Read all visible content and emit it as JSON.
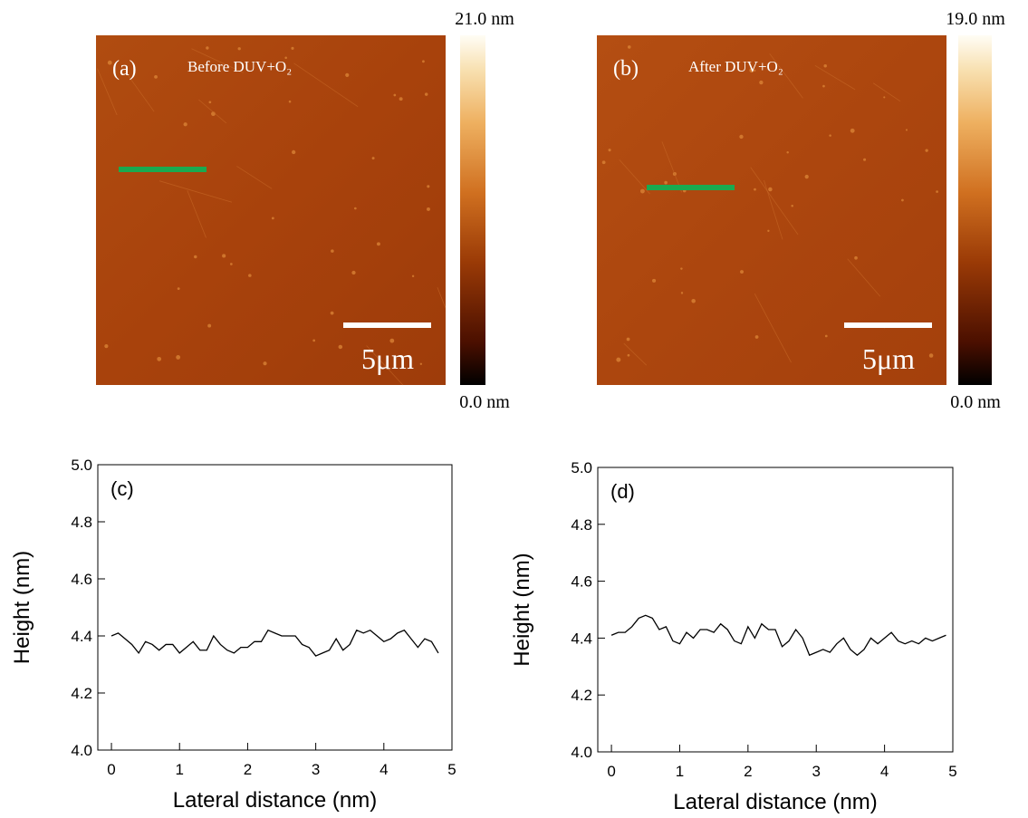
{
  "afm_images": [
    {
      "label": "(a)",
      "caption": "Before DUV+O₂",
      "scale_bar": "5μm",
      "colorbar_max": "21.0 nm",
      "colorbar_min": "0.0 nm"
    },
    {
      "label": "(b)",
      "caption": "After DUV+O₂",
      "scale_bar": "5μm",
      "colorbar_max": "19.0 nm",
      "colorbar_min": "0.0 nm"
    }
  ],
  "chart_data": [
    {
      "type": "line",
      "label": "(c)",
      "xlabel": "Lateral distance (nm)",
      "ylabel": "Height (nm)",
      "color": "#000000",
      "x": [
        0.0,
        0.1,
        0.2,
        0.3,
        0.4,
        0.5,
        0.6,
        0.7,
        0.8,
        0.9,
        1.0,
        1.1,
        1.2,
        1.3,
        1.4,
        1.5,
        1.6,
        1.7,
        1.8,
        1.9,
        2.0,
        2.1,
        2.2,
        2.3,
        2.4,
        2.5,
        2.6,
        2.7,
        2.8,
        2.9,
        3.0,
        3.1,
        3.2,
        3.3,
        3.4,
        3.5,
        3.6,
        3.7,
        3.8,
        3.9,
        4.0,
        4.1,
        4.2,
        4.3,
        4.4,
        4.5,
        4.6,
        4.7,
        4.8
      ],
      "values": [
        4.4,
        4.41,
        4.39,
        4.37,
        4.34,
        4.38,
        4.37,
        4.35,
        4.37,
        4.37,
        4.34,
        4.36,
        4.38,
        4.35,
        4.35,
        4.4,
        4.37,
        4.35,
        4.34,
        4.36,
        4.36,
        4.38,
        4.38,
        4.42,
        4.41,
        4.4,
        4.4,
        4.4,
        4.37,
        4.36,
        4.33,
        4.34,
        4.35,
        4.39,
        4.35,
        4.37,
        4.42,
        4.41,
        4.42,
        4.4,
        4.38,
        4.39,
        4.41,
        4.42,
        4.39,
        4.36,
        4.39,
        4.38,
        4.34
      ],
      "xlim": [
        -0.2,
        5
      ],
      "xticks": [
        0,
        1,
        2,
        3,
        4,
        5
      ],
      "ylim": [
        4.0,
        5.0
      ],
      "yticks": [
        {
          "value": 4.0,
          "label": "4.0"
        },
        4.2,
        4.4,
        4.6,
        4.8,
        {
          "value": 5.0,
          "label": "5.0"
        }
      ]
    },
    {
      "type": "line",
      "label": "(d)",
      "xlabel": "Lateral distance (nm)",
      "ylabel": "Height (nm)",
      "color": "#000000",
      "x": [
        0.0,
        0.1,
        0.2,
        0.3,
        0.4,
        0.5,
        0.6,
        0.7,
        0.8,
        0.9,
        1.0,
        1.1,
        1.2,
        1.3,
        1.4,
        1.5,
        1.6,
        1.7,
        1.8,
        1.9,
        2.0,
        2.1,
        2.2,
        2.3,
        2.4,
        2.5,
        2.6,
        2.7,
        2.8,
        2.9,
        3.0,
        3.1,
        3.2,
        3.3,
        3.4,
        3.5,
        3.6,
        3.7,
        3.8,
        3.9,
        4.0,
        4.1,
        4.2,
        4.3,
        4.4,
        4.5,
        4.6,
        4.7,
        4.8,
        4.9
      ],
      "values": [
        4.41,
        4.42,
        4.42,
        4.44,
        4.47,
        4.48,
        4.47,
        4.43,
        4.44,
        4.39,
        4.38,
        4.42,
        4.4,
        4.43,
        4.43,
        4.42,
        4.45,
        4.43,
        4.39,
        4.38,
        4.44,
        4.4,
        4.45,
        4.43,
        4.43,
        4.37,
        4.39,
        4.43,
        4.4,
        4.34,
        4.35,
        4.36,
        4.35,
        4.38,
        4.4,
        4.36,
        4.34,
        4.36,
        4.4,
        4.38,
        4.4,
        4.42,
        4.39,
        4.38,
        4.39,
        4.38,
        4.4,
        4.39,
        4.4,
        4.41
      ],
      "xlim": [
        -0.2,
        5
      ],
      "xticks": [
        0,
        1,
        2,
        3,
        4,
        5
      ],
      "ylim": [
        4.0,
        5.0
      ],
      "yticks": [
        {
          "value": 4.0,
          "label": "4.0"
        },
        4.2,
        4.4,
        4.6,
        4.8,
        {
          "value": 5.0,
          "label": "5.0"
        }
      ]
    }
  ]
}
